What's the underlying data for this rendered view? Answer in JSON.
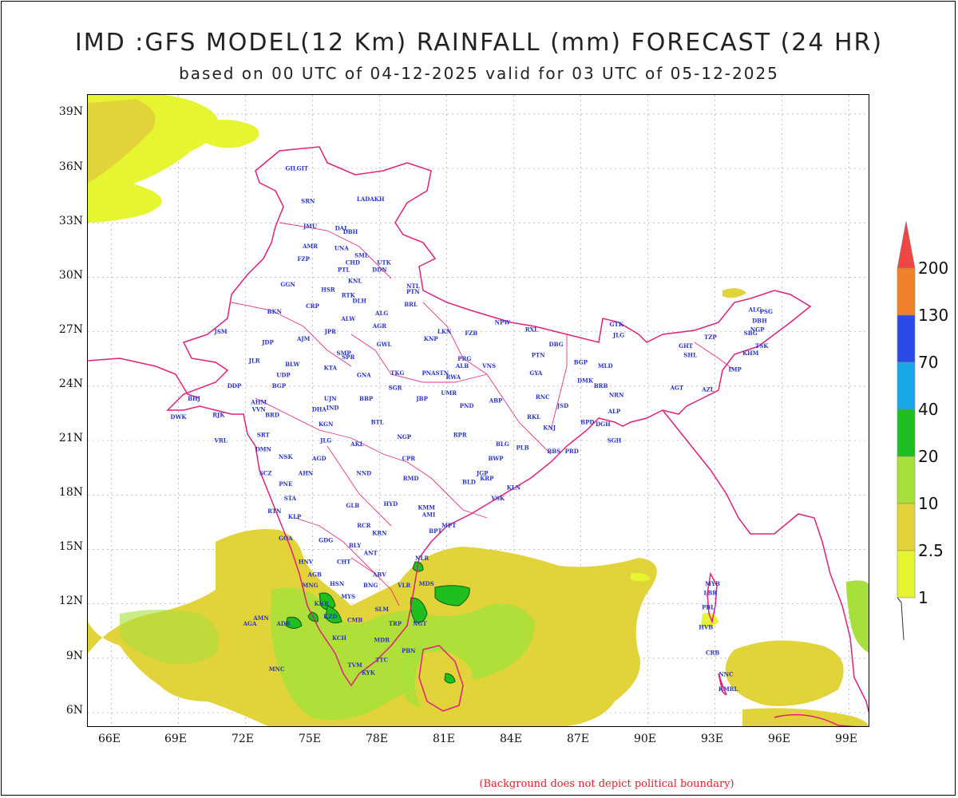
{
  "title": "IMD :GFS MODEL(12 Km) RAINFALL (mm) FORECAST (24 HR)",
  "subtitle": "based on 00 UTC of 04-12-2025 valid for 03 UTC of 05-12-2025",
  "footnote": "(Background does not depict political boundary)",
  "lat_labels": [
    "39N",
    "36N",
    "33N",
    "30N",
    "27N",
    "24N",
    "21N",
    "18N",
    "15N",
    "12N",
    "9N",
    "6N"
  ],
  "lon_labels": [
    "66E",
    "69E",
    "72E",
    "75E",
    "78E",
    "81E",
    "84E",
    "87E",
    "90E",
    "93E",
    "96E",
    "99E"
  ],
  "legend": {
    "levels": [
      "1",
      "2.5",
      "10",
      "20",
      "40",
      "70",
      "130",
      "200"
    ],
    "colors": [
      "#e6f532",
      "#e3d33a",
      "#a7e03a",
      "#1fbf1f",
      "#18a8e8",
      "#2a4ae8",
      "#f0802a",
      "#f04545"
    ]
  },
  "cities": [
    {
      "name": "GILGIT",
      "lon": 74.3,
      "lat": 35.9
    },
    {
      "name": "LADAKH",
      "lon": 77.6,
      "lat": 34.2
    },
    {
      "name": "SRN",
      "lon": 74.8,
      "lat": 34.1
    },
    {
      "name": "JMU",
      "lon": 74.9,
      "lat": 32.7
    },
    {
      "name": "DAL",
      "lon": 76.3,
      "lat": 32.6
    },
    {
      "name": "DBH",
      "lon": 76.7,
      "lat": 32.4
    },
    {
      "name": "AMR",
      "lon": 74.9,
      "lat": 31.6
    },
    {
      "name": "UNA",
      "lon": 76.3,
      "lat": 31.5
    },
    {
      "name": "SML",
      "lon": 77.2,
      "lat": 31.1
    },
    {
      "name": "FZP",
      "lon": 74.6,
      "lat": 30.9
    },
    {
      "name": "CHD",
      "lon": 76.8,
      "lat": 30.7
    },
    {
      "name": "UTK",
      "lon": 78.2,
      "lat": 30.7
    },
    {
      "name": "PTL",
      "lon": 76.4,
      "lat": 30.3
    },
    {
      "name": "DDN",
      "lon": 78.0,
      "lat": 30.3
    },
    {
      "name": "KNL",
      "lon": 76.9,
      "lat": 29.7
    },
    {
      "name": "GGN",
      "lon": 73.9,
      "lat": 29.5
    },
    {
      "name": "NTL",
      "lon": 79.5,
      "lat": 29.4
    },
    {
      "name": "HSR",
      "lon": 75.7,
      "lat": 29.2
    },
    {
      "name": "PTN",
      "lon": 79.5,
      "lat": 29.1
    },
    {
      "name": "RTK",
      "lon": 76.6,
      "lat": 28.9
    },
    {
      "name": "DLH",
      "lon": 77.1,
      "lat": 28.6
    },
    {
      "name": "BKN",
      "lon": 73.3,
      "lat": 28.0
    },
    {
      "name": "CRP",
      "lon": 75.0,
      "lat": 28.3
    },
    {
      "name": "BRL",
      "lon": 79.4,
      "lat": 28.4
    },
    {
      "name": "ALG",
      "lon": 78.1,
      "lat": 27.9
    },
    {
      "name": "ALW",
      "lon": 76.6,
      "lat": 27.6
    },
    {
      "name": "AGR",
      "lon": 78.0,
      "lat": 27.2
    },
    {
      "name": "JSM",
      "lon": 70.9,
      "lat": 26.9
    },
    {
      "name": "JPR",
      "lon": 75.8,
      "lat": 26.9
    },
    {
      "name": "LKN",
      "lon": 80.9,
      "lat": 26.9
    },
    {
      "name": "FZB",
      "lon": 82.1,
      "lat": 26.8
    },
    {
      "name": "NPW",
      "lon": 83.5,
      "lat": 27.4
    },
    {
      "name": "RXL",
      "lon": 84.8,
      "lat": 27.0
    },
    {
      "name": "AJM",
      "lon": 74.6,
      "lat": 26.5
    },
    {
      "name": "JDP",
      "lon": 73.0,
      "lat": 26.3
    },
    {
      "name": "GWL",
      "lon": 78.2,
      "lat": 26.2
    },
    {
      "name": "KNP",
      "lon": 80.3,
      "lat": 26.5
    },
    {
      "name": "DBG",
      "lon": 85.9,
      "lat": 26.2
    },
    {
      "name": "PRG",
      "lon": 81.8,
      "lat": 25.4
    },
    {
      "name": "SMP",
      "lon": 76.4,
      "lat": 25.7
    },
    {
      "name": "SPR",
      "lon": 76.6,
      "lat": 25.5
    },
    {
      "name": "ALB",
      "lon": 81.7,
      "lat": 25.0
    },
    {
      "name": "VNS",
      "lon": 82.9,
      "lat": 25.0
    },
    {
      "name": "PTN",
      "lon": 85.1,
      "lat": 25.6
    },
    {
      "name": "BGP",
      "lon": 87.0,
      "lat": 25.2
    },
    {
      "name": "JLR",
      "lon": 72.4,
      "lat": 25.3
    },
    {
      "name": "BLW",
      "lon": 74.1,
      "lat": 25.1
    },
    {
      "name": "KTA",
      "lon": 75.8,
      "lat": 24.9
    },
    {
      "name": "UDP",
      "lon": 73.7,
      "lat": 24.5
    },
    {
      "name": "TKG",
      "lon": 78.8,
      "lat": 24.6
    },
    {
      "name": "STN",
      "lon": 80.8,
      "lat": 24.6
    },
    {
      "name": "PNA",
      "lon": 80.2,
      "lat": 24.6
    },
    {
      "name": "RWA",
      "lon": 81.3,
      "lat": 24.4
    },
    {
      "name": "GYA",
      "lon": 85.0,
      "lat": 24.6
    },
    {
      "name": "GNA",
      "lon": 77.3,
      "lat": 24.5
    },
    {
      "name": "DMK",
      "lon": 87.2,
      "lat": 24.2
    },
    {
      "name": "BRB",
      "lon": 87.9,
      "lat": 23.9
    },
    {
      "name": "DDP",
      "lon": 71.5,
      "lat": 23.9
    },
    {
      "name": "BGP",
      "lon": 73.5,
      "lat": 23.9
    },
    {
      "name": "SGR",
      "lon": 78.7,
      "lat": 23.8
    },
    {
      "name": "UMR",
      "lon": 81.1,
      "lat": 23.5
    },
    {
      "name": "ABP",
      "lon": 83.2,
      "lat": 23.1
    },
    {
      "name": "RNC",
      "lon": 85.3,
      "lat": 23.3
    },
    {
      "name": "BHJ",
      "lon": 69.7,
      "lat": 23.2
    },
    {
      "name": "AHM",
      "lon": 72.6,
      "lat": 23.0
    },
    {
      "name": "UJN",
      "lon": 75.8,
      "lat": 23.2
    },
    {
      "name": "BBP",
      "lon": 77.4,
      "lat": 23.2
    },
    {
      "name": "JBP",
      "lon": 79.9,
      "lat": 23.2
    },
    {
      "name": "NRN",
      "lon": 88.6,
      "lat": 23.4
    },
    {
      "name": "VVN",
      "lon": 72.6,
      "lat": 22.6
    },
    {
      "name": "IND",
      "lon": 75.9,
      "lat": 22.7
    },
    {
      "name": "PND",
      "lon": 81.9,
      "lat": 22.8
    },
    {
      "name": "JSD",
      "lon": 86.2,
      "lat": 22.8
    },
    {
      "name": "ALP",
      "lon": 88.5,
      "lat": 22.5
    },
    {
      "name": "DWK",
      "lon": 69.0,
      "lat": 22.2
    },
    {
      "name": "RJK",
      "lon": 70.8,
      "lat": 22.3
    },
    {
      "name": "BRD",
      "lon": 73.2,
      "lat": 22.3
    },
    {
      "name": "DHA",
      "lon": 75.3,
      "lat": 22.6
    },
    {
      "name": "RKL",
      "lon": 84.9,
      "lat": 22.2
    },
    {
      "name": "BPD",
      "lon": 87.3,
      "lat": 21.9
    },
    {
      "name": "DGH",
      "lon": 88.0,
      "lat": 21.8
    },
    {
      "name": "KGN",
      "lon": 75.6,
      "lat": 21.8
    },
    {
      "name": "BTL",
      "lon": 77.9,
      "lat": 21.9
    },
    {
      "name": "KNJ",
      "lon": 85.6,
      "lat": 21.6
    },
    {
      "name": "VRL",
      "lon": 70.9,
      "lat": 20.9
    },
    {
      "name": "SRT",
      "lon": 72.8,
      "lat": 21.2
    },
    {
      "name": "NGP",
      "lon": 79.1,
      "lat": 21.1
    },
    {
      "name": "RPR",
      "lon": 81.6,
      "lat": 21.2
    },
    {
      "name": "SGH",
      "lon": 88.5,
      "lat": 20.9
    },
    {
      "name": "JLG",
      "lon": 75.6,
      "lat": 20.9
    },
    {
      "name": "AKL",
      "lon": 77.0,
      "lat": 20.7
    },
    {
      "name": "BLG",
      "lon": 83.5,
      "lat": 20.7
    },
    {
      "name": "PLB",
      "lon": 84.4,
      "lat": 20.5
    },
    {
      "name": "BBS",
      "lon": 85.8,
      "lat": 20.3
    },
    {
      "name": "PRD",
      "lon": 86.6,
      "lat": 20.3
    },
    {
      "name": "DMN",
      "lon": 72.8,
      "lat": 20.4
    },
    {
      "name": "NSK",
      "lon": 73.8,
      "lat": 20.0
    },
    {
      "name": "AGD",
      "lon": 75.3,
      "lat": 19.9
    },
    {
      "name": "CPR",
      "lon": 79.3,
      "lat": 19.9
    },
    {
      "name": "BWP",
      "lon": 83.2,
      "lat": 19.9
    },
    {
      "name": "SCZ",
      "lon": 72.9,
      "lat": 19.1
    },
    {
      "name": "AHN",
      "lon": 74.7,
      "lat": 19.1
    },
    {
      "name": "NND",
      "lon": 77.3,
      "lat": 19.1
    },
    {
      "name": "JGP",
      "lon": 82.6,
      "lat": 19.1
    },
    {
      "name": "KRP",
      "lon": 82.8,
      "lat": 18.8
    },
    {
      "name": "RMD",
      "lon": 79.4,
      "lat": 18.8
    },
    {
      "name": "BLD",
      "lon": 82.0,
      "lat": 18.6
    },
    {
      "name": "PNE",
      "lon": 73.8,
      "lat": 18.5
    },
    {
      "name": "KLN",
      "lon": 84.0,
      "lat": 18.3
    },
    {
      "name": "VSK",
      "lon": 83.3,
      "lat": 17.7
    },
    {
      "name": "STA",
      "lon": 74.0,
      "lat": 17.7
    },
    {
      "name": "GLB",
      "lon": 76.8,
      "lat": 17.3
    },
    {
      "name": "HYD",
      "lon": 78.5,
      "lat": 17.4
    },
    {
      "name": "RTN",
      "lon": 73.3,
      "lat": 17.0
    },
    {
      "name": "KMM",
      "lon": 80.1,
      "lat": 17.2
    },
    {
      "name": "AMI",
      "lon": 80.2,
      "lat": 16.8
    },
    {
      "name": "MPT",
      "lon": 81.1,
      "lat": 16.2
    },
    {
      "name": "KLP",
      "lon": 74.2,
      "lat": 16.7
    },
    {
      "name": "BPT",
      "lon": 80.5,
      "lat": 15.9
    },
    {
      "name": "RCR",
      "lon": 77.3,
      "lat": 16.2
    },
    {
      "name": "KRN",
      "lon": 78.0,
      "lat": 15.8
    },
    {
      "name": "GOA",
      "lon": 73.8,
      "lat": 15.5
    },
    {
      "name": "GDG",
      "lon": 75.6,
      "lat": 15.4
    },
    {
      "name": "BLY",
      "lon": 76.9,
      "lat": 15.1
    },
    {
      "name": "ANT",
      "lon": 77.6,
      "lat": 14.7
    },
    {
      "name": "NLR",
      "lon": 79.9,
      "lat": 14.4
    },
    {
      "name": "CHT",
      "lon": 76.4,
      "lat": 14.2
    },
    {
      "name": "HNV",
      "lon": 74.7,
      "lat": 14.2
    },
    {
      "name": "AGB",
      "lon": 75.1,
      "lat": 13.5
    },
    {
      "name": "ABV",
      "lon": 78.0,
      "lat": 13.5
    },
    {
      "name": "MNG",
      "lon": 74.9,
      "lat": 12.9
    },
    {
      "name": "HSN",
      "lon": 76.1,
      "lat": 13.0
    },
    {
      "name": "BNG",
      "lon": 77.6,
      "lat": 12.9
    },
    {
      "name": "VLR",
      "lon": 79.1,
      "lat": 12.9
    },
    {
      "name": "MDS",
      "lon": 80.1,
      "lat": 13.0
    },
    {
      "name": "MYS",
      "lon": 76.6,
      "lat": 12.3
    },
    {
      "name": "KNR",
      "lon": 75.4,
      "lat": 11.9
    },
    {
      "name": "SLM",
      "lon": 78.1,
      "lat": 11.6
    },
    {
      "name": "AMN",
      "lon": 72.7,
      "lat": 11.1
    },
    {
      "name": "KZD",
      "lon": 75.8,
      "lat": 11.2
    },
    {
      "name": "CMB",
      "lon": 76.9,
      "lat": 11.0
    },
    {
      "name": "AGA",
      "lon": 72.2,
      "lat": 10.8
    },
    {
      "name": "ADR",
      "lon": 73.7,
      "lat": 10.8
    },
    {
      "name": "TRP",
      "lon": 78.7,
      "lat": 10.8
    },
    {
      "name": "NGT",
      "lon": 79.8,
      "lat": 10.8
    },
    {
      "name": "KCH",
      "lon": 76.2,
      "lat": 10.0
    },
    {
      "name": "MDR",
      "lon": 78.1,
      "lat": 9.9
    },
    {
      "name": "PBN",
      "lon": 79.3,
      "lat": 9.3
    },
    {
      "name": "MNC",
      "lon": 73.4,
      "lat": 8.3
    },
    {
      "name": "TVM",
      "lon": 76.9,
      "lat": 8.5
    },
    {
      "name": "TTC",
      "lon": 78.1,
      "lat": 8.8
    },
    {
      "name": "KYK",
      "lon": 77.5,
      "lat": 8.1
    },
    {
      "name": "GTK",
      "lon": 88.6,
      "lat": 27.3
    },
    {
      "name": "JLG",
      "lon": 88.7,
      "lat": 26.7
    },
    {
      "name": "GHT",
      "lon": 91.7,
      "lat": 26.1
    },
    {
      "name": "TZP",
      "lon": 92.8,
      "lat": 26.6
    },
    {
      "name": "SHL",
      "lon": 91.9,
      "lat": 25.6
    },
    {
      "name": "MLD",
      "lon": 88.1,
      "lat": 25.0
    },
    {
      "name": "AGT",
      "lon": 91.3,
      "lat": 23.8
    },
    {
      "name": "AZL",
      "lon": 92.7,
      "lat": 23.7
    },
    {
      "name": "IMP",
      "lon": 93.9,
      "lat": 24.8
    },
    {
      "name": "KHM",
      "lon": 94.6,
      "lat": 25.7
    },
    {
      "name": "NGP",
      "lon": 94.9,
      "lat": 27.0
    },
    {
      "name": "DBH",
      "lon": 95.0,
      "lat": 27.5
    },
    {
      "name": "SBG",
      "lon": 94.6,
      "lat": 26.8
    },
    {
      "name": "TSK",
      "lon": 95.1,
      "lat": 26.1
    },
    {
      "name": "ALG",
      "lon": 94.8,
      "lat": 28.1
    },
    {
      "name": "PSG",
      "lon": 95.3,
      "lat": 28.0
    },
    {
      "name": "MYB",
      "lon": 92.9,
      "lat": 13.0
    },
    {
      "name": "LBR",
      "lon": 92.8,
      "lat": 12.5
    },
    {
      "name": "PBL",
      "lon": 92.7,
      "lat": 11.7
    },
    {
      "name": "HVB",
      "lon": 92.6,
      "lat": 10.6
    },
    {
      "name": "CRB",
      "lon": 92.9,
      "lat": 9.2
    },
    {
      "name": "NNC",
      "lon": 93.5,
      "lat": 8.0
    },
    {
      "name": "KMRL",
      "lon": 93.6,
      "lat": 7.2
    }
  ]
}
